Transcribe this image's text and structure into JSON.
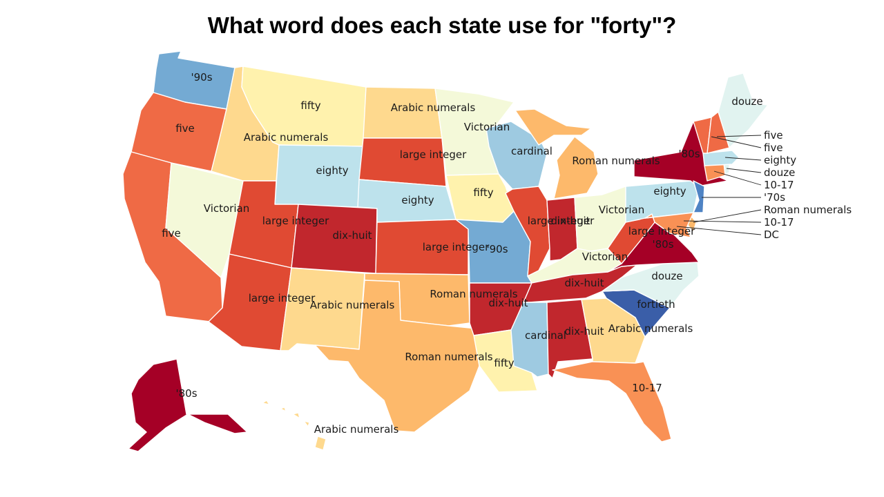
{
  "title": "What word does each state use for \"forty\"?",
  "colors": {
    "five": "#ef6a45",
    "large integer": "#e04a33",
    "dix-huit": "#c1272d",
    "'80s": "#a50026",
    "Arabic numerals": "#fed98e",
    "Roman numerals": "#fdb96b",
    "10-17": "#f99155",
    "fifty": "#fff2ad",
    "Victorian": "#f4f9d9",
    "douze": "#e1f3f0",
    "eighty": "#bde2ec",
    "cardinal": "#9ecae1",
    "'90s": "#74aad3",
    "'70s": "#4e83c4",
    "fortieth": "#3a5ea8"
  },
  "states": [
    {
      "id": "WA",
      "word": "'90s"
    },
    {
      "id": "OR",
      "word": "five"
    },
    {
      "id": "CA",
      "word": "five"
    },
    {
      "id": "NV",
      "word": "Victorian"
    },
    {
      "id": "ID",
      "word": "Arabic numerals"
    },
    {
      "id": "MT",
      "word": "fifty"
    },
    {
      "id": "WY",
      "word": "eighty"
    },
    {
      "id": "UT",
      "word": "large integer"
    },
    {
      "id": "AZ",
      "word": "large integer"
    },
    {
      "id": "CO",
      "word": "dix-huit"
    },
    {
      "id": "NM",
      "word": "Arabic numerals"
    },
    {
      "id": "ND",
      "word": "Arabic numerals"
    },
    {
      "id": "SD",
      "word": "large integer"
    },
    {
      "id": "NE",
      "word": "eighty"
    },
    {
      "id": "KS",
      "word": "large integer"
    },
    {
      "id": "OK",
      "word": "Roman numerals"
    },
    {
      "id": "TX",
      "word": "Roman numerals"
    },
    {
      "id": "MN",
      "word": "Victorian"
    },
    {
      "id": "IA",
      "word": "fifty"
    },
    {
      "id": "MO",
      "word": "'90s"
    },
    {
      "id": "AR",
      "word": "dix-huit"
    },
    {
      "id": "LA",
      "word": "fifty"
    },
    {
      "id": "WI",
      "word": "cardinal"
    },
    {
      "id": "IL",
      "word": "large integer"
    },
    {
      "id": "MI",
      "word": "Roman numerals"
    },
    {
      "id": "IN",
      "word": "dix-huit"
    },
    {
      "id": "OH",
      "word": "Victorian"
    },
    {
      "id": "KY",
      "word": "Victorian"
    },
    {
      "id": "TN",
      "word": "dix-huit"
    },
    {
      "id": "MS",
      "word": "cardinal"
    },
    {
      "id": "AL",
      "word": "dix-huit"
    },
    {
      "id": "GA",
      "word": "Arabic numerals"
    },
    {
      "id": "FL",
      "word": "10-17"
    },
    {
      "id": "SC",
      "word": "fortieth"
    },
    {
      "id": "NC",
      "word": "douze"
    },
    {
      "id": "VA",
      "word": "'80s"
    },
    {
      "id": "WV",
      "word": "large integer"
    },
    {
      "id": "PA",
      "word": "eighty"
    },
    {
      "id": "NY",
      "word": "'80s"
    },
    {
      "id": "NJ",
      "word": "'70s"
    },
    {
      "id": "DE",
      "word": "Roman numerals"
    },
    {
      "id": "MD",
      "word": "10-17"
    },
    {
      "id": "DC",
      "word": "DC"
    },
    {
      "id": "CT",
      "word": "10-17"
    },
    {
      "id": "RI",
      "word": "douze"
    },
    {
      "id": "MA",
      "word": "eighty"
    },
    {
      "id": "VT",
      "word": "five"
    },
    {
      "id": "NH",
      "word": "five"
    },
    {
      "id": "ME",
      "word": "douze"
    },
    {
      "id": "AK",
      "word": "'80s"
    },
    {
      "id": "HI",
      "word": "Arabic numerals"
    }
  ],
  "callouts": [
    {
      "id": "NH",
      "text": "five"
    },
    {
      "id": "VT",
      "text": "five"
    },
    {
      "id": "MA",
      "text": "eighty"
    },
    {
      "id": "RI",
      "text": "douze"
    },
    {
      "id": "CT",
      "text": "10-17"
    },
    {
      "id": "NJ",
      "text": "'70s"
    },
    {
      "id": "DE",
      "text": "Roman numerals"
    },
    {
      "id": "MD",
      "text": "10-17"
    },
    {
      "id": "DC",
      "text": "DC"
    }
  ]
}
